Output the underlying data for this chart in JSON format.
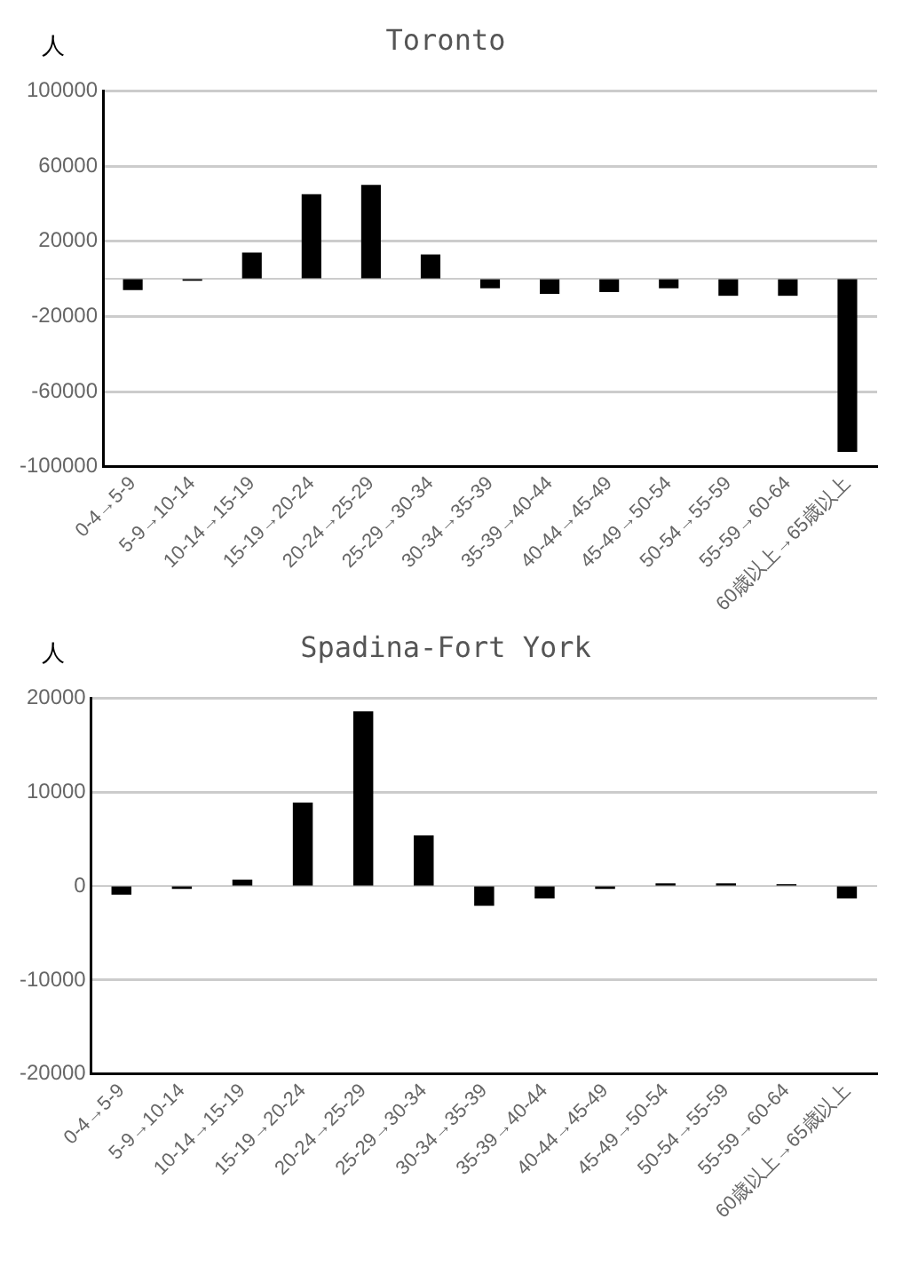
{
  "chart_data": [
    {
      "type": "bar",
      "title": "Toronto",
      "ylabel": "人",
      "categories": [
        "0-4→5-9",
        "5-9→10-14",
        "10-14→15-19",
        "15-19→20-24",
        "20-24→25-29",
        "25-29→30-34",
        "30-34→35-39",
        "35-39→40-44",
        "40-44→45-49",
        "45-49→50-54",
        "50-54→55-59",
        "55-59→60-64",
        "60歳以上→65歳以上"
      ],
      "values": [
        -6000,
        -1000,
        14000,
        45000,
        50000,
        13000,
        -5000,
        -8000,
        -7000,
        -5000,
        -9000,
        -9000,
        -92000
      ],
      "color": "#000000",
      "ylim": [
        -100000,
        100000
      ],
      "yticks": [
        -100000,
        -60000,
        -20000,
        {
          "value": 0,
          "label": null
        },
        20000,
        60000,
        100000
      ],
      "grid": "y"
    },
    {
      "type": "bar",
      "title": "Spadina-Fort York",
      "ylabel": "人",
      "categories": [
        "0-4→5-9",
        "5-9→10-14",
        "10-14→15-19",
        "15-19→20-24",
        "20-24→25-29",
        "25-29→30-34",
        "30-34→35-39",
        "35-39→40-44",
        "40-44→45-49",
        "45-49→50-54",
        "50-54→55-59",
        "55-59→60-64",
        "60歳以上→65歳以上"
      ],
      "values": [
        -900,
        -300,
        700,
        8900,
        18600,
        5400,
        -2100,
        -1300,
        -300,
        300,
        300,
        200,
        -1300
      ],
      "color": "#000000",
      "ylim": [
        -20000,
        20000
      ],
      "yticks": [
        -20000,
        -10000,
        0,
        10000,
        20000
      ],
      "grid": "y"
    }
  ]
}
